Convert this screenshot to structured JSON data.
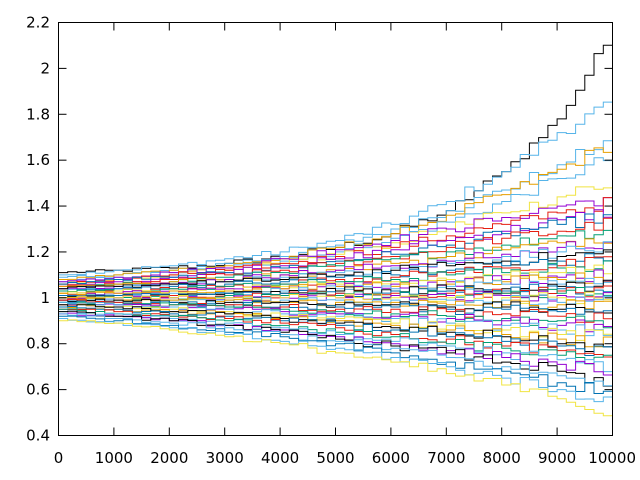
{
  "chart_data": {
    "type": "line",
    "title": "",
    "xlabel": "",
    "ylabel": "",
    "xlim": [
      0,
      10000
    ],
    "ylim": [
      0.4,
      2.2
    ],
    "x_ticks": [
      "0",
      "1000",
      "2000",
      "3000",
      "4000",
      "5000",
      "6000",
      "7000",
      "8000",
      "9000",
      "10000"
    ],
    "y_ticks": [
      "0.4",
      "0.6",
      "0.8",
      "1",
      "1.2",
      "1.4",
      "1.6",
      "1.8",
      "2",
      "2.2"
    ],
    "x_tick_values": [
      0,
      1000,
      2000,
      3000,
      4000,
      5000,
      6000,
      7000,
      8000,
      9000,
      10000
    ],
    "y_tick_values": [
      0.4,
      0.6,
      0.8,
      1.0,
      1.2,
      1.4,
      1.6,
      1.8,
      2.0,
      2.2
    ],
    "grid": false,
    "legend": "none",
    "palette": [
      "#9400d3",
      "#009e73",
      "#56b4e9",
      "#e69f00",
      "#f0e442",
      "#0072b2",
      "#e51e10",
      "#000000"
    ],
    "step_x": [
      0,
      1000,
      2000,
      3000,
      4000,
      5000,
      6000,
      7000,
      8000,
      9000,
      10000
    ],
    "series": [
      {
        "color": "#000000",
        "values": [
          1.11,
          1.12,
          1.13,
          1.15,
          1.18,
          1.22,
          1.28,
          1.38,
          1.55,
          1.78,
          2.17
        ]
      },
      {
        "color": "#56b4e9",
        "values": [
          1.1,
          1.12,
          1.14,
          1.17,
          1.2,
          1.25,
          1.32,
          1.42,
          1.55,
          1.72,
          1.86
        ]
      },
      {
        "color": "#56b4e9",
        "values": [
          1.09,
          1.1,
          1.12,
          1.15,
          1.18,
          1.23,
          1.3,
          1.38,
          1.47,
          1.58,
          1.7
        ]
      },
      {
        "color": "#e69f00",
        "values": [
          1.08,
          1.1,
          1.12,
          1.14,
          1.17,
          1.22,
          1.28,
          1.36,
          1.45,
          1.56,
          1.68
        ]
      },
      {
        "color": "#56b4e9",
        "values": [
          1.07,
          1.09,
          1.11,
          1.13,
          1.16,
          1.2,
          1.26,
          1.33,
          1.42,
          1.52,
          1.62
        ]
      },
      {
        "color": "#f0e442",
        "values": [
          1.06,
          1.08,
          1.1,
          1.12,
          1.15,
          1.19,
          1.24,
          1.3,
          1.37,
          1.44,
          1.51
        ]
      },
      {
        "color": "#9400d3",
        "values": [
          1.07,
          1.09,
          1.11,
          1.13,
          1.17,
          1.21,
          1.25,
          1.3,
          1.35,
          1.4,
          1.44
        ]
      },
      {
        "color": "#e51e10",
        "values": [
          1.06,
          1.08,
          1.1,
          1.12,
          1.15,
          1.18,
          1.22,
          1.27,
          1.32,
          1.37,
          1.42
        ]
      },
      {
        "color": "#9400d3",
        "values": [
          1.05,
          1.07,
          1.09,
          1.11,
          1.14,
          1.17,
          1.21,
          1.25,
          1.29,
          1.34,
          1.38
        ]
      },
      {
        "color": "#0072b2",
        "values": [
          1.06,
          1.08,
          1.09,
          1.11,
          1.13,
          1.16,
          1.19,
          1.23,
          1.28,
          1.32,
          1.36
        ]
      },
      {
        "color": "#e51e10",
        "values": [
          1.05,
          1.06,
          1.08,
          1.1,
          1.12,
          1.15,
          1.18,
          1.22,
          1.26,
          1.29,
          1.33
        ]
      },
      {
        "color": "#009e73",
        "values": [
          1.04,
          1.06,
          1.07,
          1.09,
          1.11,
          1.14,
          1.17,
          1.2,
          1.23,
          1.27,
          1.3
        ]
      },
      {
        "color": "#e69f00",
        "values": [
          1.05,
          1.06,
          1.07,
          1.08,
          1.1,
          1.12,
          1.15,
          1.18,
          1.21,
          1.24,
          1.27
        ]
      },
      {
        "color": "#9400d3",
        "values": [
          1.04,
          1.05,
          1.06,
          1.08,
          1.1,
          1.12,
          1.14,
          1.16,
          1.19,
          1.22,
          1.25
        ]
      },
      {
        "color": "#56b4e9",
        "values": [
          1.03,
          1.04,
          1.06,
          1.07,
          1.09,
          1.11,
          1.13,
          1.15,
          1.18,
          1.2,
          1.22
        ]
      },
      {
        "color": "#000000",
        "values": [
          1.04,
          1.05,
          1.06,
          1.07,
          1.08,
          1.1,
          1.12,
          1.14,
          1.16,
          1.18,
          1.2
        ]
      },
      {
        "color": "#0072b2",
        "values": [
          1.03,
          1.04,
          1.05,
          1.06,
          1.07,
          1.09,
          1.1,
          1.12,
          1.14,
          1.16,
          1.18
        ]
      },
      {
        "color": "#e51e10",
        "values": [
          1.02,
          1.03,
          1.04,
          1.05,
          1.06,
          1.08,
          1.09,
          1.11,
          1.13,
          1.14,
          1.16
        ]
      },
      {
        "color": "#009e73",
        "values": [
          1.03,
          1.03,
          1.04,
          1.05,
          1.06,
          1.07,
          1.08,
          1.1,
          1.11,
          1.13,
          1.14
        ]
      },
      {
        "color": "#f0e442",
        "values": [
          1.02,
          1.03,
          1.03,
          1.04,
          1.05,
          1.06,
          1.07,
          1.08,
          1.1,
          1.11,
          1.12
        ]
      },
      {
        "color": "#9400d3",
        "values": [
          1.01,
          1.02,
          1.03,
          1.04,
          1.04,
          1.05,
          1.06,
          1.07,
          1.08,
          1.09,
          1.1
        ]
      },
      {
        "color": "#e69f00",
        "values": [
          1.02,
          1.02,
          1.03,
          1.03,
          1.04,
          1.05,
          1.05,
          1.06,
          1.07,
          1.08,
          1.09
        ]
      },
      {
        "color": "#56b4e9",
        "values": [
          1.01,
          1.01,
          1.02,
          1.02,
          1.03,
          1.04,
          1.04,
          1.05,
          1.06,
          1.06,
          1.07
        ]
      },
      {
        "color": "#000000",
        "values": [
          1.0,
          1.01,
          1.01,
          1.02,
          1.02,
          1.03,
          1.03,
          1.04,
          1.04,
          1.05,
          1.05
        ]
      },
      {
        "color": "#0072b2",
        "values": [
          1.01,
          1.01,
          1.01,
          1.02,
          1.02,
          1.02,
          1.03,
          1.03,
          1.03,
          1.04,
          1.04
        ]
      },
      {
        "color": "#e51e10",
        "values": [
          1.0,
          1.0,
          1.01,
          1.01,
          1.01,
          1.02,
          1.02,
          1.02,
          1.02,
          1.03,
          1.03
        ]
      },
      {
        "color": "#009e73",
        "values": [
          1.0,
          1.0,
          1.0,
          1.01,
          1.01,
          1.01,
          1.01,
          1.01,
          1.02,
          1.02,
          1.02
        ]
      },
      {
        "color": "#9400d3",
        "values": [
          0.99,
          1.0,
          1.0,
          1.0,
          1.0,
          1.0,
          1.01,
          1.01,
          1.01,
          1.01,
          1.01
        ]
      },
      {
        "color": "#f0e442",
        "values": [
          1.0,
          1.0,
          1.0,
          1.0,
          1.0,
          1.0,
          1.0,
          1.0,
          1.0,
          1.0,
          1.0
        ]
      },
      {
        "color": "#56b4e9",
        "values": [
          0.99,
          0.99,
          0.99,
          0.99,
          0.99,
          0.99,
          0.99,
          0.99,
          0.99,
          0.98,
          0.98
        ]
      },
      {
        "color": "#e69f00",
        "values": [
          1.0,
          0.99,
          0.99,
          0.99,
          0.98,
          0.98,
          0.98,
          0.97,
          0.97,
          0.97,
          0.96
        ]
      },
      {
        "color": "#000000",
        "values": [
          0.99,
          0.99,
          0.98,
          0.98,
          0.98,
          0.97,
          0.97,
          0.96,
          0.96,
          0.95,
          0.95
        ]
      },
      {
        "color": "#0072b2",
        "values": [
          0.98,
          0.98,
          0.98,
          0.97,
          0.97,
          0.96,
          0.96,
          0.95,
          0.95,
          0.94,
          0.93
        ]
      },
      {
        "color": "#e51e10",
        "values": [
          0.99,
          0.98,
          0.97,
          0.97,
          0.96,
          0.95,
          0.95,
          0.94,
          0.93,
          0.92,
          0.91
        ]
      },
      {
        "color": "#009e73",
        "values": [
          0.98,
          0.97,
          0.97,
          0.96,
          0.95,
          0.94,
          0.93,
          0.92,
          0.91,
          0.9,
          0.89
        ]
      },
      {
        "color": "#9400d3",
        "values": [
          0.97,
          0.97,
          0.96,
          0.95,
          0.94,
          0.93,
          0.92,
          0.91,
          0.9,
          0.88,
          0.87
        ]
      },
      {
        "color": "#56b4e9",
        "values": [
          0.98,
          0.97,
          0.96,
          0.95,
          0.93,
          0.92,
          0.91,
          0.89,
          0.88,
          0.86,
          0.85
        ]
      },
      {
        "color": "#f0e442",
        "values": [
          0.97,
          0.96,
          0.95,
          0.94,
          0.92,
          0.91,
          0.89,
          0.88,
          0.86,
          0.84,
          0.83
        ]
      },
      {
        "color": "#e69f00",
        "values": [
          0.96,
          0.95,
          0.94,
          0.93,
          0.91,
          0.9,
          0.88,
          0.86,
          0.84,
          0.82,
          0.8
        ]
      },
      {
        "color": "#000000",
        "values": [
          0.97,
          0.96,
          0.94,
          0.93,
          0.91,
          0.89,
          0.87,
          0.85,
          0.83,
          0.8,
          0.78
        ]
      },
      {
        "color": "#0072b2",
        "values": [
          0.96,
          0.95,
          0.93,
          0.92,
          0.9,
          0.88,
          0.86,
          0.83,
          0.81,
          0.79,
          0.76
        ]
      },
      {
        "color": "#e51e10",
        "values": [
          0.95,
          0.94,
          0.92,
          0.91,
          0.89,
          0.87,
          0.84,
          0.82,
          0.79,
          0.77,
          0.74
        ]
      },
      {
        "color": "#009e73",
        "values": [
          0.95,
          0.93,
          0.92,
          0.9,
          0.88,
          0.85,
          0.83,
          0.8,
          0.78,
          0.75,
          0.72
        ]
      },
      {
        "color": "#56b4e9",
        "values": [
          0.94,
          0.93,
          0.91,
          0.89,
          0.87,
          0.84,
          0.81,
          0.79,
          0.76,
          0.73,
          0.7
        ]
      },
      {
        "color": "#9400d3",
        "values": [
          0.93,
          0.92,
          0.9,
          0.88,
          0.86,
          0.83,
          0.8,
          0.77,
          0.74,
          0.71,
          0.68
        ]
      },
      {
        "color": "#000000",
        "values": [
          0.94,
          0.92,
          0.9,
          0.88,
          0.85,
          0.82,
          0.79,
          0.76,
          0.72,
          0.68,
          0.6
        ]
      },
      {
        "color": "#56b4e9",
        "values": [
          0.93,
          0.91,
          0.89,
          0.87,
          0.84,
          0.81,
          0.78,
          0.74,
          0.7,
          0.66,
          0.63
        ]
      },
      {
        "color": "#0072b2",
        "values": [
          0.92,
          0.9,
          0.88,
          0.85,
          0.83,
          0.8,
          0.76,
          0.72,
          0.68,
          0.63,
          0.58
        ]
      },
      {
        "color": "#56b4e9",
        "values": [
          0.91,
          0.89,
          0.87,
          0.84,
          0.81,
          0.78,
          0.74,
          0.7,
          0.65,
          0.6,
          0.55
        ]
      },
      {
        "color": "#f0e442",
        "values": [
          0.9,
          0.89,
          0.86,
          0.83,
          0.8,
          0.76,
          0.72,
          0.67,
          0.62,
          0.56,
          0.49
        ]
      }
    ]
  }
}
